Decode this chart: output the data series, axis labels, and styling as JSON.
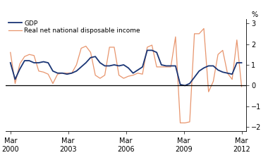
{
  "legend": [
    "GDP",
    "Real net national disposable income"
  ],
  "gdp_color": "#1a3575",
  "rndi_color": "#e8956d",
  "background_color": "#ffffff",
  "ylim": [
    -2.2,
    3.2
  ],
  "yticks": [
    -2,
    -1,
    0,
    1,
    2,
    3
  ],
  "xtick_labels": [
    "Mar\n2000",
    "Mar\n2003",
    "Mar\n2006",
    "Mar\n2009",
    "Mar\n2012"
  ],
  "xtick_positions": [
    0,
    12,
    24,
    36,
    48
  ],
  "ylabel_right": "%",
  "gdp_values": [
    1.1,
    0.3,
    0.8,
    1.2,
    1.2,
    1.1,
    1.1,
    1.15,
    1.1,
    0.7,
    0.6,
    0.6,
    0.55,
    0.6,
    0.7,
    0.9,
    1.1,
    1.35,
    1.4,
    1.1,
    0.95,
    0.95,
    1.0,
    0.95,
    1.0,
    0.85,
    0.6,
    0.75,
    0.9,
    1.7,
    1.7,
    1.6,
    1.0,
    0.95,
    0.95,
    0.95,
    0.05,
    0.0,
    0.1,
    0.4,
    0.7,
    0.85,
    0.95,
    0.95,
    0.75,
    0.65,
    0.6,
    0.55,
    1.1,
    1.1
  ],
  "rndi_values": [
    1.6,
    0.1,
    1.05,
    1.4,
    1.5,
    1.45,
    0.7,
    0.65,
    0.55,
    0.1,
    0.55,
    0.6,
    0.6,
    0.6,
    1.0,
    1.8,
    1.9,
    1.6,
    0.5,
    0.35,
    0.5,
    1.85,
    1.85,
    0.5,
    0.35,
    0.45,
    0.5,
    0.6,
    0.55,
    1.85,
    1.95,
    0.9,
    0.9,
    0.9,
    0.9,
    2.35,
    -1.8,
    -1.8,
    -1.75,
    2.5,
    2.5,
    2.75,
    -0.3,
    0.2,
    1.5,
    1.7,
    0.6,
    0.3,
    2.2,
    -0.05
  ]
}
